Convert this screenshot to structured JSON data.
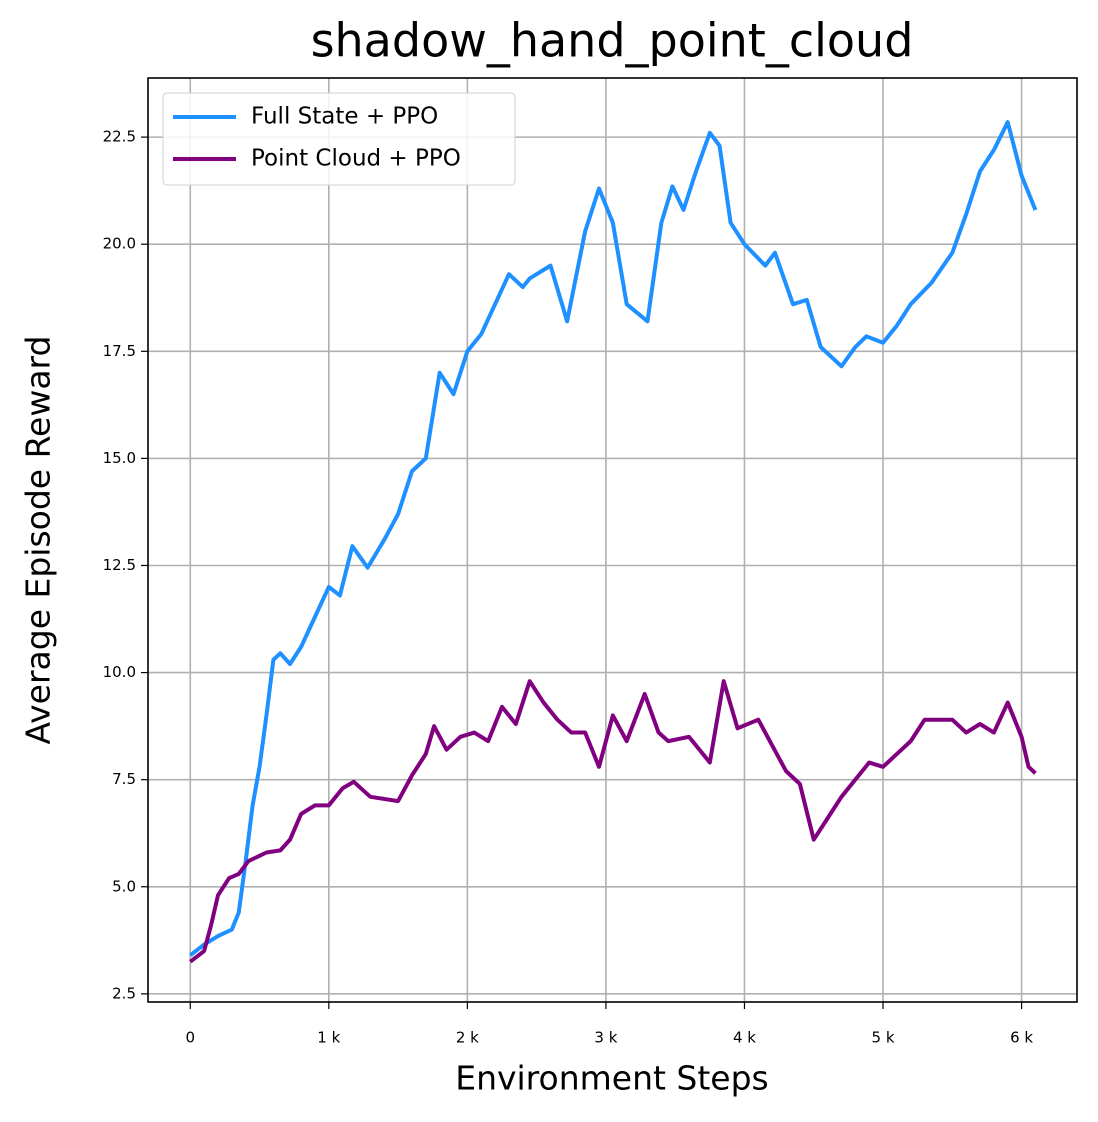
{
  "chart_data": {
    "type": "line",
    "title": "shadow_hand_point_cloud",
    "x_label": "Environment Steps",
    "y_label": "Average Episode Reward",
    "xlim": [
      -305,
      6400
    ],
    "ylim": [
      2.31,
      23.88
    ],
    "xticks": [
      0,
      {
        "value": 1000,
        "label": "1 k"
      },
      {
        "value": 2000,
        "label": "2 k"
      },
      {
        "value": 3000,
        "label": "3 k"
      },
      {
        "value": 4000,
        "label": "4 k"
      },
      {
        "value": 5000,
        "label": "5 k"
      },
      {
        "value": 6000,
        "label": "6 k"
      }
    ],
    "yticks": [
      2.5,
      {
        "value": 5,
        "label": "5.0"
      },
      7.5,
      {
        "value": 10,
        "label": "10.0"
      },
      12.5,
      {
        "value": 15,
        "label": "15.0"
      },
      17.5,
      {
        "value": 20,
        "label": "20.0"
      },
      22.5
    ],
    "grid": true,
    "legend": "upper-left",
    "series": [
      {
        "name": "Full State + PPO",
        "color": "#1e90ff",
        "x": [
          0,
          100,
          200,
          300,
          350,
          400,
          450,
          500,
          550,
          600,
          650,
          720,
          800,
          900,
          1000,
          1080,
          1170,
          1280,
          1400,
          1500,
          1600,
          1700,
          1800,
          1900,
          2000,
          2100,
          2200,
          2300,
          2400,
          2450,
          2600,
          2720,
          2850,
          2950,
          3050,
          3150,
          3300,
          3400,
          3480,
          3560,
          3650,
          3750,
          3820,
          3900,
          4000,
          4150,
          4220,
          4350,
          4450,
          4550,
          4700,
          4800,
          4880,
          5000,
          5100,
          5200,
          5350,
          5500,
          5600,
          5700,
          5800,
          5900,
          6000,
          6100
        ],
        "values": [
          3.4,
          3.65,
          3.85,
          4.0,
          4.4,
          5.6,
          6.9,
          7.8,
          9.0,
          10.3,
          10.45,
          10.2,
          10.6,
          11.3,
          12.0,
          11.8,
          12.95,
          12.45,
          13.1,
          13.7,
          14.7,
          15.0,
          17.0,
          16.5,
          17.5,
          17.9,
          18.6,
          19.3,
          19.0,
          19.2,
          19.5,
          18.2,
          20.3,
          21.3,
          20.5,
          18.6,
          18.2,
          20.5,
          21.35,
          20.8,
          21.7,
          22.6,
          22.3,
          20.5,
          20.0,
          19.5,
          19.8,
          18.6,
          18.7,
          17.6,
          17.15,
          17.6,
          17.85,
          17.7,
          18.1,
          18.6,
          19.1,
          19.8,
          20.7,
          21.7,
          22.2,
          22.85,
          21.6,
          20.8
        ]
      },
      {
        "name": "Point Cloud + PPO",
        "color": "#800080",
        "x": [
          0,
          100,
          150,
          200,
          280,
          350,
          420,
          550,
          650,
          720,
          800,
          900,
          1000,
          1100,
          1180,
          1300,
          1400,
          1500,
          1600,
          1700,
          1760,
          1850,
          1950,
          2050,
          2150,
          2250,
          2350,
          2450,
          2550,
          2650,
          2750,
          2850,
          2950,
          3050,
          3150,
          3280,
          3380,
          3450,
          3600,
          3750,
          3850,
          3950,
          4100,
          4200,
          4300,
          4400,
          4500,
          4600,
          4700,
          4800,
          4900,
          5000,
          5100,
          5200,
          5300,
          5400,
          5500,
          5600,
          5700,
          5800,
          5900,
          6000,
          6050,
          6100
        ],
        "values": [
          3.25,
          3.5,
          4.1,
          4.8,
          5.2,
          5.3,
          5.6,
          5.8,
          5.85,
          6.1,
          6.7,
          6.9,
          6.9,
          7.3,
          7.45,
          7.1,
          7.05,
          7.0,
          7.6,
          8.1,
          8.75,
          8.2,
          8.5,
          8.6,
          8.4,
          9.2,
          8.8,
          9.8,
          9.3,
          8.9,
          8.6,
          8.6,
          7.8,
          9.0,
          8.4,
          9.5,
          8.6,
          8.4,
          8.5,
          7.9,
          9.8,
          8.7,
          8.9,
          8.3,
          7.7,
          7.4,
          6.1,
          6.6,
          7.1,
          7.5,
          7.9,
          7.8,
          8.1,
          8.4,
          8.9,
          8.9,
          8.9,
          8.6,
          8.8,
          8.6,
          9.3,
          8.5,
          7.8,
          7.65
        ]
      }
    ]
  }
}
